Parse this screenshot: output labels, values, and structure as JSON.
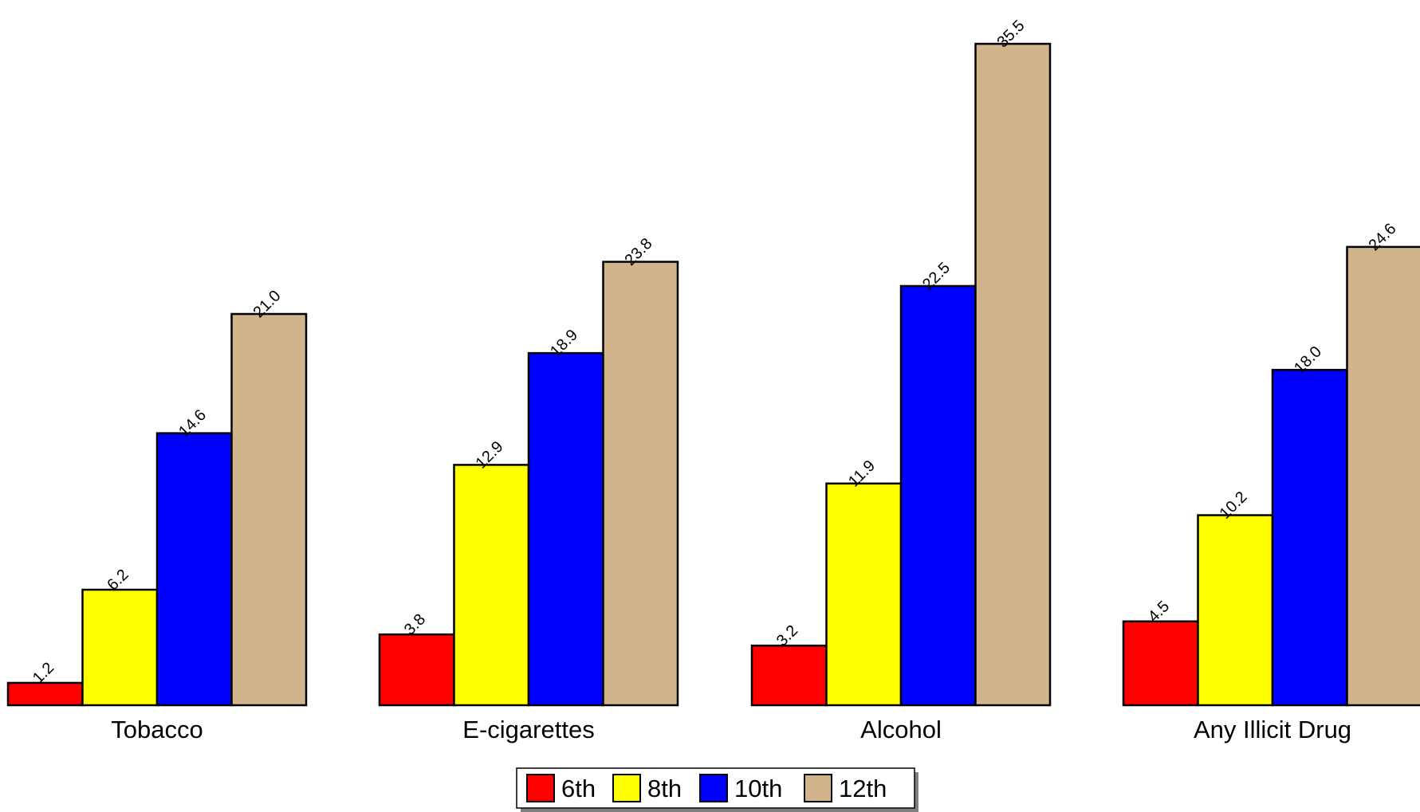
{
  "chart_data": {
    "type": "bar",
    "categories": [
      "Tobacco",
      "E-cigarettes",
      "Alcohol",
      "Any Illicit Drug"
    ],
    "series": [
      {
        "name": "6th",
        "color": "#ff0000",
        "values": [
          1.2,
          3.8,
          3.2,
          4.5
        ]
      },
      {
        "name": "8th",
        "color": "#ffff00",
        "values": [
          6.2,
          12.9,
          11.9,
          10.2
        ]
      },
      {
        "name": "10th",
        "color": "#0000ff",
        "values": [
          14.6,
          18.9,
          22.5,
          18.0
        ]
      },
      {
        "name": "12th",
        "color": "#d2b48c",
        "values": [
          21.0,
          23.8,
          35.5,
          24.6
        ]
      }
    ],
    "data_labels": [
      [
        "1.2",
        "3.8",
        "3.2",
        "4.5"
      ],
      [
        "6.2",
        "12.9",
        "11.9",
        "10.2"
      ],
      [
        "14.6",
        "18.9",
        "22.5",
        "18.0"
      ],
      [
        "21.0",
        "23.8",
        "35.5",
        "24.6"
      ]
    ],
    "ylim": [
      0,
      35.5
    ],
    "grid": false,
    "legend_position": "bottom-center"
  }
}
